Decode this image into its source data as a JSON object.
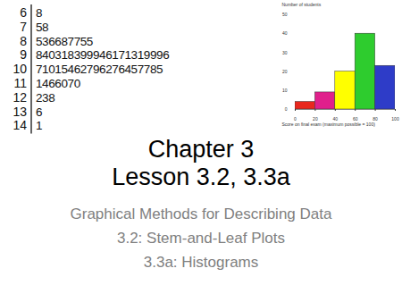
{
  "stem_and_leaf": {
    "rows": [
      {
        "stem": "6",
        "leaves": "8"
      },
      {
        "stem": "7",
        "leaves": "58"
      },
      {
        "stem": "8",
        "leaves": "536687755"
      },
      {
        "stem": "9",
        "leaves": "840318399946171319996"
      },
      {
        "stem": "10",
        "leaves": "71015462796276457785"
      },
      {
        "stem": "11",
        "leaves": "1466070"
      },
      {
        "stem": "12",
        "leaves": "238"
      },
      {
        "stem": "13",
        "leaves": "6"
      },
      {
        "stem": "14",
        "leaves": "1"
      }
    ]
  },
  "chart_data": {
    "type": "histogram",
    "ylabel": "Number of students",
    "xlabel": "Score on final exam (maximum possible = 100)",
    "bins": [
      0,
      20,
      40,
      60,
      80,
      100
    ],
    "values": [
      4,
      9,
      20,
      40,
      23
    ],
    "colors": [
      "#e8281e",
      "#e0208c",
      "#ffff00",
      "#2ecc2e",
      "#2e3cc8"
    ],
    "xlim": [
      0,
      100
    ],
    "xticks": [
      0,
      20,
      40,
      60,
      80,
      100
    ],
    "ylim": [
      0,
      50
    ],
    "yticks": [
      0,
      10,
      20,
      30,
      40,
      50
    ]
  },
  "slide": {
    "title": [
      "Chapter 3",
      "Lesson 3.2, 3.3a"
    ],
    "subtitle": [
      "Graphical Methods for Describing Data",
      "3.2: Stem-and-Leaf Plots",
      "3.3a: Histograms"
    ]
  }
}
